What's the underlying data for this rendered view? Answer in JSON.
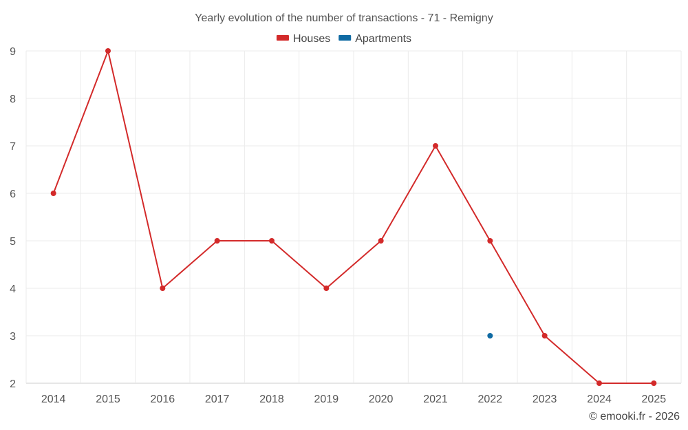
{
  "chart_data": {
    "type": "line",
    "title": "Yearly evolution of the number of transactions - 71 - Remigny",
    "xlabel": "",
    "ylabel": "",
    "categories": [
      "2014",
      "2015",
      "2016",
      "2017",
      "2018",
      "2019",
      "2020",
      "2021",
      "2022",
      "2023",
      "2024",
      "2025"
    ],
    "ylim": [
      2,
      9
    ],
    "yticks": [
      2,
      3,
      4,
      5,
      6,
      7,
      8,
      9
    ],
    "grid": true,
    "legend_position": "top-center",
    "series": [
      {
        "name": "Houses",
        "color": "#d32a2a",
        "values": [
          6,
          9,
          4,
          5,
          5,
          4,
          5,
          7,
          5,
          3,
          2,
          2
        ]
      },
      {
        "name": "Apartments",
        "color": "#0f6aa3",
        "values": [
          null,
          null,
          null,
          null,
          null,
          null,
          null,
          null,
          3,
          null,
          null,
          null
        ]
      }
    ]
  },
  "credit": "© emooki.fr - 2026"
}
